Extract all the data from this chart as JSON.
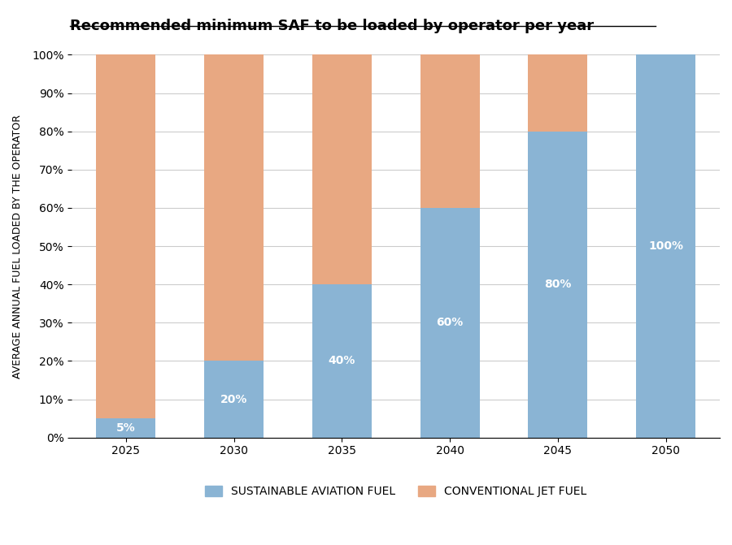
{
  "title": "Recommended minimum SAF to be loaded by operator per year",
  "ylabel": "AVERAGE ANNUAL FUEL LOADED BY THE OPERATOR",
  "categories": [
    "2025",
    "2030",
    "2035",
    "2040",
    "2045",
    "2050"
  ],
  "saf_values": [
    5,
    20,
    40,
    60,
    80,
    100
  ],
  "conv_values": [
    95,
    80,
    60,
    40,
    20,
    0
  ],
  "saf_color": "#8ab4d4",
  "conv_color": "#e8a882",
  "saf_label": "SUSTAINABLE AVIATION FUEL",
  "conv_label": "CONVENTIONAL JET FUEL",
  "saf_labels": [
    "5%",
    "20%",
    "40%",
    "60%",
    "80%",
    "100%"
  ],
  "label_color": "white",
  "background_color": "#ffffff",
  "ylim": [
    0,
    100
  ],
  "yticks": [
    0,
    10,
    20,
    30,
    40,
    50,
    60,
    70,
    80,
    90,
    100
  ],
  "ytick_labels": [
    "0%",
    "10%",
    "20%",
    "30%",
    "40%",
    "50%",
    "60%",
    "70%",
    "80%",
    "90%",
    "100%"
  ],
  "title_fontsize": 13,
  "label_fontsize": 9,
  "tick_fontsize": 10,
  "bar_width": 0.55,
  "legend_fontsize": 10
}
